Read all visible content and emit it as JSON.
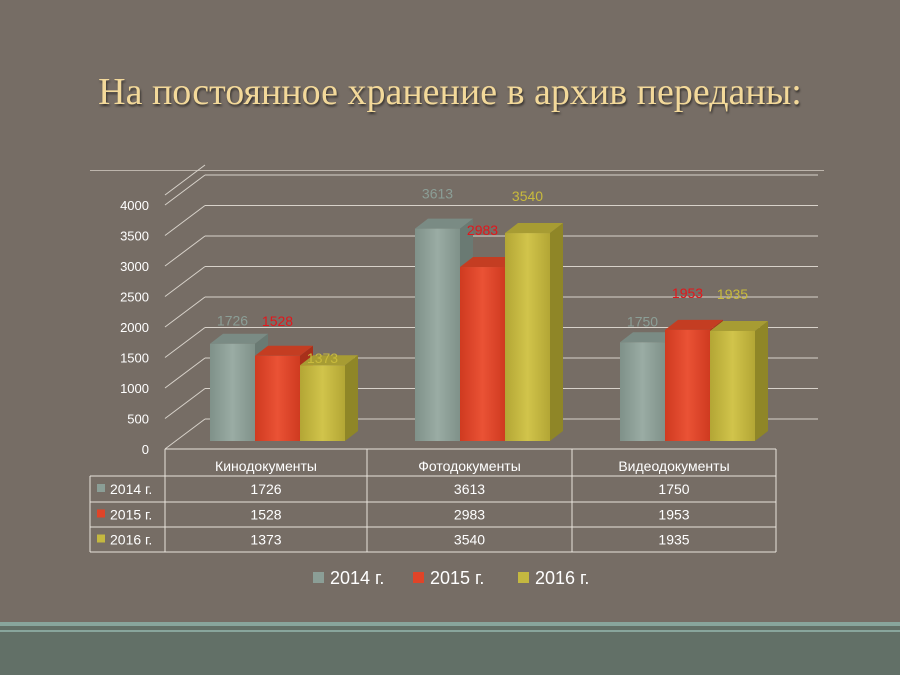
{
  "slide": {
    "title": "На постоянное хранение в архив переданы:"
  },
  "chart_data": {
    "type": "bar",
    "title": "",
    "xlabel": "",
    "ylabel": "",
    "ylim": [
      0,
      4000
    ],
    "yticks": [
      0,
      500,
      1000,
      1500,
      2000,
      2500,
      3000,
      3500,
      4000
    ],
    "categories": [
      "Кинодокументы",
      "Фотодокументы",
      "Видеодокументы"
    ],
    "series": [
      {
        "name": "2014 г.",
        "values": [
          1726,
          3613,
          1750
        ],
        "color": "#8b9e96",
        "label_color": "#8b9e96"
      },
      {
        "name": "2015 г.",
        "values": [
          1528,
          2983,
          1953
        ],
        "color": "#e04428",
        "label_color": "#e3161b"
      },
      {
        "name": "2016 г.",
        "values": [
          1373,
          3540,
          1935
        ],
        "color": "#c4b840",
        "label_color": "#c8ba3c"
      }
    ],
    "grid": true,
    "legend": "bottom",
    "data_table": true
  }
}
